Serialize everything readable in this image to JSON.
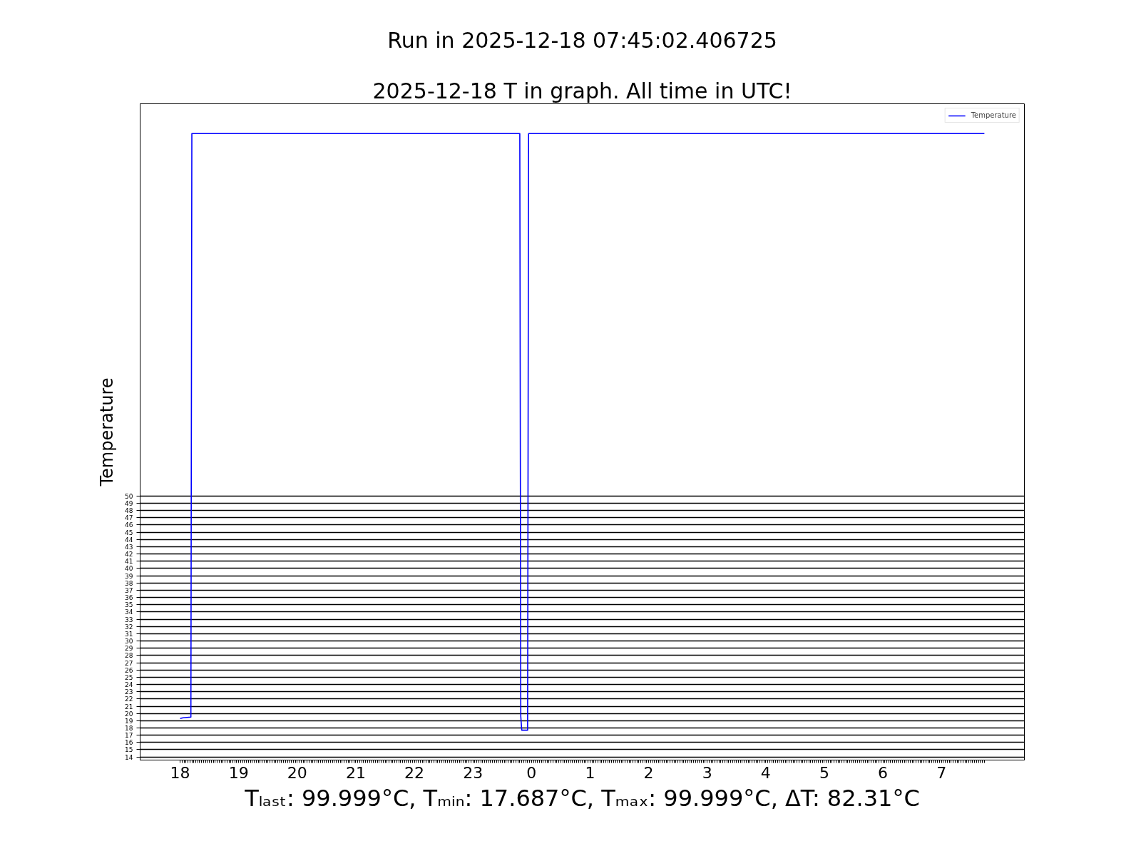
{
  "chart_data": {
    "type": "line",
    "title": "Run in 2025-12-18 07:45:02.406725",
    "subtitle": "2025-12-18 T in graph. All time in UTC!",
    "xlabel": "Tₗₐₛₜ: 99.999°C, Tₘᵢₙ: 17.687°C, Tₘₐₓ: 99.999°C, ΔT: 82.31°C",
    "ylabel": "Temperature",
    "x": [
      "2025-12-17T18:00",
      "2025-12-17T18:03",
      "2025-12-17T18:11",
      "2025-12-17T18:12",
      "2025-12-17T23:48",
      "2025-12-17T23:49",
      "2025-12-17T23:50",
      "2025-12-17T23:56",
      "2025-12-17T23:57",
      "2025-12-18T07:44"
    ],
    "series": [
      {
        "name": "Temperature",
        "color": "#0000ff",
        "values": [
          19.3,
          19.4,
          19.5,
          99.999,
          99.999,
          19.6,
          17.687,
          17.687,
          99.999,
          99.999
        ]
      }
    ],
    "xlim": [
      "2025-12-17T17:19",
      "2025-12-18T08:25"
    ],
    "xticks": [
      {
        "value": "2025-12-17T18:00",
        "label": "18"
      },
      {
        "value": "2025-12-17T18:02",
        "label": null
      },
      {
        "value": "2025-12-17T18:04",
        "label": null
      },
      {
        "value": "2025-12-17T18:06",
        "label": null
      },
      {
        "value": "2025-12-17T18:08",
        "label": null
      },
      {
        "value": "2025-12-17T18:10",
        "label": null
      },
      {
        "value": "2025-12-17T18:12",
        "label": null
      },
      {
        "value": "2025-12-17T18:14",
        "label": null
      },
      {
        "value": "2025-12-17T18:16",
        "label": null
      },
      {
        "value": "2025-12-17T18:18",
        "label": null
      },
      {
        "value": "2025-12-17T18:20",
        "label": null
      },
      {
        "value": "2025-12-17T18:22",
        "label": null
      },
      {
        "value": "2025-12-17T18:24",
        "label": null
      },
      {
        "value": "2025-12-17T18:26",
        "label": null
      },
      {
        "value": "2025-12-17T18:28",
        "label": null
      },
      {
        "value": "2025-12-17T18:30",
        "label": null
      },
      {
        "value": "2025-12-17T18:32",
        "label": null
      },
      {
        "value": "2025-12-17T18:34",
        "label": null
      },
      {
        "value": "2025-12-17T18:36",
        "label": null
      },
      {
        "value": "2025-12-17T18:38",
        "label": null
      },
      {
        "value": "2025-12-17T18:40",
        "label": null
      },
      {
        "value": "2025-12-17T18:42",
        "label": null
      },
      {
        "value": "2025-12-17T18:44",
        "label": null
      },
      {
        "value": "2025-12-17T18:46",
        "label": null
      },
      {
        "value": "2025-12-17T18:48",
        "label": null
      },
      {
        "value": "2025-12-17T18:50",
        "label": null
      },
      {
        "value": "2025-12-17T18:52",
        "label": null
      },
      {
        "value": "2025-12-17T18:54",
        "label": null
      },
      {
        "value": "2025-12-17T18:56",
        "label": null
      },
      {
        "value": "2025-12-17T18:58",
        "label": null
      },
      {
        "value": "2025-12-17T19:00",
        "label": "19"
      },
      {
        "value": "2025-12-17T19:02",
        "label": null
      },
      {
        "value": "2025-12-17T19:04",
        "label": null
      },
      {
        "value": "2025-12-17T19:06",
        "label": null
      },
      {
        "value": "2025-12-17T19:08",
        "label": null
      },
      {
        "value": "2025-12-17T19:10",
        "label": null
      },
      {
        "value": "2025-12-17T19:12",
        "label": null
      },
      {
        "value": "2025-12-17T19:14",
        "label": null
      },
      {
        "value": "2025-12-17T19:16",
        "label": null
      },
      {
        "value": "2025-12-17T19:18",
        "label": null
      },
      {
        "value": "2025-12-17T19:20",
        "label": null
      },
      {
        "value": "2025-12-17T19:22",
        "label": null
      },
      {
        "value": "2025-12-17T19:24",
        "label": null
      },
      {
        "value": "2025-12-17T19:26",
        "label": null
      },
      {
        "value": "2025-12-17T19:28",
        "label": null
      },
      {
        "value": "2025-12-17T19:30",
        "label": null
      },
      {
        "value": "2025-12-17T19:32",
        "label": null
      },
      {
        "value": "2025-12-17T19:34",
        "label": null
      },
      {
        "value": "2025-12-17T19:36",
        "label": null
      },
      {
        "value": "2025-12-17T19:38",
        "label": null
      },
      {
        "value": "2025-12-17T19:40",
        "label": null
      },
      {
        "value": "2025-12-17T19:42",
        "label": null
      },
      {
        "value": "2025-12-17T19:44",
        "label": null
      },
      {
        "value": "2025-12-17T19:46",
        "label": null
      },
      {
        "value": "2025-12-17T19:48",
        "label": null
      },
      {
        "value": "2025-12-17T19:50",
        "label": null
      },
      {
        "value": "2025-12-17T19:52",
        "label": null
      },
      {
        "value": "2025-12-17T19:54",
        "label": null
      },
      {
        "value": "2025-12-17T19:56",
        "label": null
      },
      {
        "value": "2025-12-17T19:58",
        "label": null
      },
      {
        "value": "2025-12-17T20:00",
        "label": "20"
      },
      {
        "value": "2025-12-17T20:02",
        "label": null
      },
      {
        "value": "2025-12-17T20:04",
        "label": null
      },
      {
        "value": "2025-12-17T20:06",
        "label": null
      },
      {
        "value": "2025-12-17T20:08",
        "label": null
      },
      {
        "value": "2025-12-17T20:10",
        "label": null
      },
      {
        "value": "2025-12-17T20:12",
        "label": null
      },
      {
        "value": "2025-12-17T20:14",
        "label": null
      },
      {
        "value": "2025-12-17T20:16",
        "label": null
      },
      {
        "value": "2025-12-17T20:18",
        "label": null
      },
      {
        "value": "2025-12-17T20:20",
        "label": null
      },
      {
        "value": "2025-12-17T20:22",
        "label": null
      },
      {
        "value": "2025-12-17T20:24",
        "label": null
      },
      {
        "value": "2025-12-17T20:26",
        "label": null
      },
      {
        "value": "2025-12-17T20:28",
        "label": null
      },
      {
        "value": "2025-12-17T20:30",
        "label": null
      },
      {
        "value": "2025-12-17T20:32",
        "label": null
      },
      {
        "value": "2025-12-17T20:34",
        "label": null
      },
      {
        "value": "2025-12-17T20:36",
        "label": null
      },
      {
        "value": "2025-12-17T20:38",
        "label": null
      },
      {
        "value": "2025-12-17T20:40",
        "label": null
      },
      {
        "value": "2025-12-17T20:42",
        "label": null
      },
      {
        "value": "2025-12-17T20:44",
        "label": null
      },
      {
        "value": "2025-12-17T20:46",
        "label": null
      },
      {
        "value": "2025-12-17T20:48",
        "label": null
      },
      {
        "value": "2025-12-17T20:50",
        "label": null
      },
      {
        "value": "2025-12-17T20:52",
        "label": null
      },
      {
        "value": "2025-12-17T20:54",
        "label": null
      },
      {
        "value": "2025-12-17T20:56",
        "label": null
      },
      {
        "value": "2025-12-17T20:58",
        "label": null
      },
      {
        "value": "2025-12-17T21:00",
        "label": "21"
      },
      {
        "value": "2025-12-17T21:02",
        "label": null
      },
      {
        "value": "2025-12-17T21:04",
        "label": null
      },
      {
        "value": "2025-12-17T21:06",
        "label": null
      },
      {
        "value": "2025-12-17T21:08",
        "label": null
      },
      {
        "value": "2025-12-17T21:10",
        "label": null
      },
      {
        "value": "2025-12-17T21:12",
        "label": null
      },
      {
        "value": "2025-12-17T21:14",
        "label": null
      },
      {
        "value": "2025-12-17T21:16",
        "label": null
      },
      {
        "value": "2025-12-17T21:18",
        "label": null
      },
      {
        "value": "2025-12-17T21:20",
        "label": null
      },
      {
        "value": "2025-12-17T21:22",
        "label": null
      },
      {
        "value": "2025-12-17T21:24",
        "label": null
      },
      {
        "value": "2025-12-17T21:26",
        "label": null
      },
      {
        "value": "2025-12-17T21:28",
        "label": null
      },
      {
        "value": "2025-12-17T21:30",
        "label": null
      },
      {
        "value": "2025-12-17T21:32",
        "label": null
      },
      {
        "value": "2025-12-17T21:34",
        "label": null
      },
      {
        "value": "2025-12-17T21:36",
        "label": null
      },
      {
        "value": "2025-12-17T21:38",
        "label": null
      },
      {
        "value": "2025-12-17T21:40",
        "label": null
      },
      {
        "value": "2025-12-17T21:42",
        "label": null
      },
      {
        "value": "2025-12-17T21:44",
        "label": null
      },
      {
        "value": "2025-12-17T21:46",
        "label": null
      },
      {
        "value": "2025-12-17T21:48",
        "label": null
      },
      {
        "value": "2025-12-17T21:50",
        "label": null
      },
      {
        "value": "2025-12-17T21:52",
        "label": null
      },
      {
        "value": "2025-12-17T21:54",
        "label": null
      },
      {
        "value": "2025-12-17T21:56",
        "label": null
      },
      {
        "value": "2025-12-17T21:58",
        "label": null
      },
      {
        "value": "2025-12-17T22:00",
        "label": "22"
      },
      {
        "value": "2025-12-17T22:02",
        "label": null
      },
      {
        "value": "2025-12-17T22:04",
        "label": null
      },
      {
        "value": "2025-12-17T22:06",
        "label": null
      },
      {
        "value": "2025-12-17T22:08",
        "label": null
      },
      {
        "value": "2025-12-17T22:10",
        "label": null
      },
      {
        "value": "2025-12-17T22:12",
        "label": null
      },
      {
        "value": "2025-12-17T22:14",
        "label": null
      },
      {
        "value": "2025-12-17T22:16",
        "label": null
      },
      {
        "value": "2025-12-17T22:18",
        "label": null
      },
      {
        "value": "2025-12-17T22:20",
        "label": null
      },
      {
        "value": "2025-12-17T22:22",
        "label": null
      },
      {
        "value": "2025-12-17T22:24",
        "label": null
      },
      {
        "value": "2025-12-17T22:26",
        "label": null
      },
      {
        "value": "2025-12-17T22:28",
        "label": null
      },
      {
        "value": "2025-12-17T22:30",
        "label": null
      },
      {
        "value": "2025-12-17T22:32",
        "label": null
      },
      {
        "value": "2025-12-17T22:34",
        "label": null
      },
      {
        "value": "2025-12-17T22:36",
        "label": null
      },
      {
        "value": "2025-12-17T22:38",
        "label": null
      },
      {
        "value": "2025-12-17T22:40",
        "label": null
      },
      {
        "value": "2025-12-17T22:42",
        "label": null
      },
      {
        "value": "2025-12-17T22:44",
        "label": null
      },
      {
        "value": "2025-12-17T22:46",
        "label": null
      },
      {
        "value": "2025-12-17T22:48",
        "label": null
      },
      {
        "value": "2025-12-17T22:50",
        "label": null
      },
      {
        "value": "2025-12-17T22:52",
        "label": null
      },
      {
        "value": "2025-12-17T22:54",
        "label": null
      },
      {
        "value": "2025-12-17T22:56",
        "label": null
      },
      {
        "value": "2025-12-17T22:58",
        "label": null
      },
      {
        "value": "2025-12-17T23:00",
        "label": "23"
      },
      {
        "value": "2025-12-17T23:02",
        "label": null
      },
      {
        "value": "2025-12-17T23:04",
        "label": null
      },
      {
        "value": "2025-12-17T23:06",
        "label": null
      },
      {
        "value": "2025-12-17T23:08",
        "label": null
      },
      {
        "value": "2025-12-17T23:10",
        "label": null
      },
      {
        "value": "2025-12-17T23:12",
        "label": null
      },
      {
        "value": "2025-12-17T23:14",
        "label": null
      },
      {
        "value": "2025-12-17T23:16",
        "label": null
      },
      {
        "value": "2025-12-17T23:18",
        "label": null
      },
      {
        "value": "2025-12-17T23:20",
        "label": null
      },
      {
        "value": "2025-12-17T23:22",
        "label": null
      },
      {
        "value": "2025-12-17T23:24",
        "label": null
      },
      {
        "value": "2025-12-17T23:26",
        "label": null
      },
      {
        "value": "2025-12-17T23:28",
        "label": null
      },
      {
        "value": "2025-12-17T23:30",
        "label": null
      },
      {
        "value": "2025-12-17T23:32",
        "label": null
      },
      {
        "value": "2025-12-17T23:34",
        "label": null
      },
      {
        "value": "2025-12-17T23:36",
        "label": null
      },
      {
        "value": "2025-12-17T23:38",
        "label": null
      },
      {
        "value": "2025-12-17T23:40",
        "label": null
      },
      {
        "value": "2025-12-17T23:42",
        "label": null
      },
      {
        "value": "2025-12-17T23:44",
        "label": null
      },
      {
        "value": "2025-12-17T23:46",
        "label": null
      },
      {
        "value": "2025-12-17T23:48",
        "label": null
      },
      {
        "value": "2025-12-17T23:50",
        "label": null
      },
      {
        "value": "2025-12-17T23:52",
        "label": null
      },
      {
        "value": "2025-12-17T23:54",
        "label": null
      },
      {
        "value": "2025-12-17T23:56",
        "label": null
      },
      {
        "value": "2025-12-17T23:58",
        "label": null
      },
      {
        "value": "2025-12-18T00:00",
        "label": "0"
      },
      {
        "value": "2025-12-18T00:02",
        "label": null
      },
      {
        "value": "2025-12-18T00:04",
        "label": null
      },
      {
        "value": "2025-12-18T00:06",
        "label": null
      },
      {
        "value": "2025-12-18T00:08",
        "label": null
      },
      {
        "value": "2025-12-18T00:10",
        "label": null
      },
      {
        "value": "2025-12-18T00:12",
        "label": null
      },
      {
        "value": "2025-12-18T00:14",
        "label": null
      },
      {
        "value": "2025-12-18T00:16",
        "label": null
      },
      {
        "value": "2025-12-18T00:18",
        "label": null
      },
      {
        "value": "2025-12-18T00:20",
        "label": null
      },
      {
        "value": "2025-12-18T00:22",
        "label": null
      },
      {
        "value": "2025-12-18T00:24",
        "label": null
      },
      {
        "value": "2025-12-18T00:26",
        "label": null
      },
      {
        "value": "2025-12-18T00:28",
        "label": null
      },
      {
        "value": "2025-12-18T00:30",
        "label": null
      },
      {
        "value": "2025-12-18T00:32",
        "label": null
      },
      {
        "value": "2025-12-18T00:34",
        "label": null
      },
      {
        "value": "2025-12-18T00:36",
        "label": null
      },
      {
        "value": "2025-12-18T00:38",
        "label": null
      },
      {
        "value": "2025-12-18T00:40",
        "label": null
      },
      {
        "value": "2025-12-18T00:42",
        "label": null
      },
      {
        "value": "2025-12-18T00:44",
        "label": null
      },
      {
        "value": "2025-12-18T00:46",
        "label": null
      },
      {
        "value": "2025-12-18T00:48",
        "label": null
      },
      {
        "value": "2025-12-18T00:50",
        "label": null
      },
      {
        "value": "2025-12-18T00:52",
        "label": null
      },
      {
        "value": "2025-12-18T00:54",
        "label": null
      },
      {
        "value": "2025-12-18T00:56",
        "label": null
      },
      {
        "value": "2025-12-18T00:58",
        "label": null
      },
      {
        "value": "2025-12-18T01:00",
        "label": "1"
      },
      {
        "value": "2025-12-18T01:02",
        "label": null
      },
      {
        "value": "2025-12-18T01:04",
        "label": null
      },
      {
        "value": "2025-12-18T01:06",
        "label": null
      },
      {
        "value": "2025-12-18T01:08",
        "label": null
      },
      {
        "value": "2025-12-18T01:10",
        "label": null
      },
      {
        "value": "2025-12-18T01:12",
        "label": null
      },
      {
        "value": "2025-12-18T01:14",
        "label": null
      },
      {
        "value": "2025-12-18T01:16",
        "label": null
      },
      {
        "value": "2025-12-18T01:18",
        "label": null
      },
      {
        "value": "2025-12-18T01:20",
        "label": null
      },
      {
        "value": "2025-12-18T01:22",
        "label": null
      },
      {
        "value": "2025-12-18T01:24",
        "label": null
      },
      {
        "value": "2025-12-18T01:26",
        "label": null
      },
      {
        "value": "2025-12-18T01:28",
        "label": null
      },
      {
        "value": "2025-12-18T01:30",
        "label": null
      },
      {
        "value": "2025-12-18T01:32",
        "label": null
      },
      {
        "value": "2025-12-18T01:34",
        "label": null
      },
      {
        "value": "2025-12-18T01:36",
        "label": null
      },
      {
        "value": "2025-12-18T01:38",
        "label": null
      },
      {
        "value": "2025-12-18T01:40",
        "label": null
      },
      {
        "value": "2025-12-18T01:42",
        "label": null
      },
      {
        "value": "2025-12-18T01:44",
        "label": null
      },
      {
        "value": "2025-12-18T01:46",
        "label": null
      },
      {
        "value": "2025-12-18T01:48",
        "label": null
      },
      {
        "value": "2025-12-18T01:50",
        "label": null
      },
      {
        "value": "2025-12-18T01:52",
        "label": null
      },
      {
        "value": "2025-12-18T01:54",
        "label": null
      },
      {
        "value": "2025-12-18T01:56",
        "label": null
      },
      {
        "value": "2025-12-18T01:58",
        "label": null
      },
      {
        "value": "2025-12-18T02:00",
        "label": "2"
      },
      {
        "value": "2025-12-18T02:02",
        "label": null
      },
      {
        "value": "2025-12-18T02:04",
        "label": null
      },
      {
        "value": "2025-12-18T02:06",
        "label": null
      },
      {
        "value": "2025-12-18T02:08",
        "label": null
      },
      {
        "value": "2025-12-18T02:10",
        "label": null
      },
      {
        "value": "2025-12-18T02:12",
        "label": null
      },
      {
        "value": "2025-12-18T02:14",
        "label": null
      },
      {
        "value": "2025-12-18T02:16",
        "label": null
      },
      {
        "value": "2025-12-18T02:18",
        "label": null
      },
      {
        "value": "2025-12-18T02:20",
        "label": null
      },
      {
        "value": "2025-12-18T02:22",
        "label": null
      },
      {
        "value": "2025-12-18T02:24",
        "label": null
      },
      {
        "value": "2025-12-18T02:26",
        "label": null
      },
      {
        "value": "2025-12-18T02:28",
        "label": null
      },
      {
        "value": "2025-12-18T02:30",
        "label": null
      },
      {
        "value": "2025-12-18T02:32",
        "label": null
      },
      {
        "value": "2025-12-18T02:34",
        "label": null
      },
      {
        "value": "2025-12-18T02:36",
        "label": null
      },
      {
        "value": "2025-12-18T02:38",
        "label": null
      },
      {
        "value": "2025-12-18T02:40",
        "label": null
      },
      {
        "value": "2025-12-18T02:42",
        "label": null
      },
      {
        "value": "2025-12-18T02:44",
        "label": null
      },
      {
        "value": "2025-12-18T02:46",
        "label": null
      },
      {
        "value": "2025-12-18T02:48",
        "label": null
      },
      {
        "value": "2025-12-18T02:50",
        "label": null
      },
      {
        "value": "2025-12-18T02:52",
        "label": null
      },
      {
        "value": "2025-12-18T02:54",
        "label": null
      },
      {
        "value": "2025-12-18T02:56",
        "label": null
      },
      {
        "value": "2025-12-18T02:58",
        "label": null
      },
      {
        "value": "2025-12-18T03:00",
        "label": "3"
      },
      {
        "value": "2025-12-18T03:02",
        "label": null
      },
      {
        "value": "2025-12-18T03:04",
        "label": null
      },
      {
        "value": "2025-12-18T03:06",
        "label": null
      },
      {
        "value": "2025-12-18T03:08",
        "label": null
      },
      {
        "value": "2025-12-18T03:10",
        "label": null
      },
      {
        "value": "2025-12-18T03:12",
        "label": null
      },
      {
        "value": "2025-12-18T03:14",
        "label": null
      },
      {
        "value": "2025-12-18T03:16",
        "label": null
      },
      {
        "value": "2025-12-18T03:18",
        "label": null
      },
      {
        "value": "2025-12-18T03:20",
        "label": null
      },
      {
        "value": "2025-12-18T03:22",
        "label": null
      },
      {
        "value": "2025-12-18T03:24",
        "label": null
      },
      {
        "value": "2025-12-18T03:26",
        "label": null
      },
      {
        "value": "2025-12-18T03:28",
        "label": null
      },
      {
        "value": "2025-12-18T03:30",
        "label": null
      },
      {
        "value": "2025-12-18T03:32",
        "label": null
      },
      {
        "value": "2025-12-18T03:34",
        "label": null
      },
      {
        "value": "2025-12-18T03:36",
        "label": null
      },
      {
        "value": "2025-12-18T03:38",
        "label": null
      },
      {
        "value": "2025-12-18T03:40",
        "label": null
      },
      {
        "value": "2025-12-18T03:42",
        "label": null
      },
      {
        "value": "2025-12-18T03:44",
        "label": null
      },
      {
        "value": "2025-12-18T03:46",
        "label": null
      },
      {
        "value": "2025-12-18T03:48",
        "label": null
      },
      {
        "value": "2025-12-18T03:50",
        "label": null
      },
      {
        "value": "2025-12-18T03:52",
        "label": null
      },
      {
        "value": "2025-12-18T03:54",
        "label": null
      },
      {
        "value": "2025-12-18T03:56",
        "label": null
      },
      {
        "value": "2025-12-18T03:58",
        "label": null
      },
      {
        "value": "2025-12-18T04:00",
        "label": "4"
      },
      {
        "value": "2025-12-18T04:02",
        "label": null
      },
      {
        "value": "2025-12-18T04:04",
        "label": null
      },
      {
        "value": "2025-12-18T04:06",
        "label": null
      },
      {
        "value": "2025-12-18T04:08",
        "label": null
      },
      {
        "value": "2025-12-18T04:10",
        "label": null
      },
      {
        "value": "2025-12-18T04:12",
        "label": null
      },
      {
        "value": "2025-12-18T04:14",
        "label": null
      },
      {
        "value": "2025-12-18T04:16",
        "label": null
      },
      {
        "value": "2025-12-18T04:18",
        "label": null
      },
      {
        "value": "2025-12-18T04:20",
        "label": null
      },
      {
        "value": "2025-12-18T04:22",
        "label": null
      },
      {
        "value": "2025-12-18T04:24",
        "label": null
      },
      {
        "value": "2025-12-18T04:26",
        "label": null
      },
      {
        "value": "2025-12-18T04:28",
        "label": null
      },
      {
        "value": "2025-12-18T04:30",
        "label": null
      },
      {
        "value": "2025-12-18T04:32",
        "label": null
      },
      {
        "value": "2025-12-18T04:34",
        "label": null
      },
      {
        "value": "2025-12-18T04:36",
        "label": null
      },
      {
        "value": "2025-12-18T04:38",
        "label": null
      },
      {
        "value": "2025-12-18T04:40",
        "label": null
      },
      {
        "value": "2025-12-18T04:42",
        "label": null
      },
      {
        "value": "2025-12-18T04:44",
        "label": null
      },
      {
        "value": "2025-12-18T04:46",
        "label": null
      },
      {
        "value": "2025-12-18T04:48",
        "label": null
      },
      {
        "value": "2025-12-18T04:50",
        "label": null
      },
      {
        "value": "2025-12-18T04:52",
        "label": null
      },
      {
        "value": "2025-12-18T04:54",
        "label": null
      },
      {
        "value": "2025-12-18T04:56",
        "label": null
      },
      {
        "value": "2025-12-18T04:58",
        "label": null
      },
      {
        "value": "2025-12-18T05:00",
        "label": "5"
      },
      {
        "value": "2025-12-18T05:02",
        "label": null
      },
      {
        "value": "2025-12-18T05:04",
        "label": null
      },
      {
        "value": "2025-12-18T05:06",
        "label": null
      },
      {
        "value": "2025-12-18T05:08",
        "label": null
      },
      {
        "value": "2025-12-18T05:10",
        "label": null
      },
      {
        "value": "2025-12-18T05:12",
        "label": null
      },
      {
        "value": "2025-12-18T05:14",
        "label": null
      },
      {
        "value": "2025-12-18T05:16",
        "label": null
      },
      {
        "value": "2025-12-18T05:18",
        "label": null
      },
      {
        "value": "2025-12-18T05:20",
        "label": null
      },
      {
        "value": "2025-12-18T05:22",
        "label": null
      },
      {
        "value": "2025-12-18T05:24",
        "label": null
      },
      {
        "value": "2025-12-18T05:26",
        "label": null
      },
      {
        "value": "2025-12-18T05:28",
        "label": null
      },
      {
        "value": "2025-12-18T05:30",
        "label": null
      },
      {
        "value": "2025-12-18T05:32",
        "label": null
      },
      {
        "value": "2025-12-18T05:34",
        "label": null
      },
      {
        "value": "2025-12-18T05:36",
        "label": null
      },
      {
        "value": "2025-12-18T05:38",
        "label": null
      },
      {
        "value": "2025-12-18T05:40",
        "label": null
      },
      {
        "value": "2025-12-18T05:42",
        "label": null
      },
      {
        "value": "2025-12-18T05:44",
        "label": null
      },
      {
        "value": "2025-12-18T05:46",
        "label": null
      },
      {
        "value": "2025-12-18T05:48",
        "label": null
      },
      {
        "value": "2025-12-18T05:50",
        "label": null
      },
      {
        "value": "2025-12-18T05:52",
        "label": null
      },
      {
        "value": "2025-12-18T05:54",
        "label": null
      },
      {
        "value": "2025-12-18T05:56",
        "label": null
      },
      {
        "value": "2025-12-18T05:58",
        "label": null
      },
      {
        "value": "2025-12-18T06:00",
        "label": "6"
      },
      {
        "value": "2025-12-18T06:02",
        "label": null
      },
      {
        "value": "2025-12-18T06:04",
        "label": null
      },
      {
        "value": "2025-12-18T06:06",
        "label": null
      },
      {
        "value": "2025-12-18T06:08",
        "label": null
      },
      {
        "value": "2025-12-18T06:10",
        "label": null
      },
      {
        "value": "2025-12-18T06:12",
        "label": null
      },
      {
        "value": "2025-12-18T06:14",
        "label": null
      },
      {
        "value": "2025-12-18T06:16",
        "label": null
      },
      {
        "value": "2025-12-18T06:18",
        "label": null
      },
      {
        "value": "2025-12-18T06:20",
        "label": null
      },
      {
        "value": "2025-12-18T06:22",
        "label": null
      },
      {
        "value": "2025-12-18T06:24",
        "label": null
      },
      {
        "value": "2025-12-18T06:26",
        "label": null
      },
      {
        "value": "2025-12-18T06:28",
        "label": null
      },
      {
        "value": "2025-12-18T06:30",
        "label": null
      },
      {
        "value": "2025-12-18T06:32",
        "label": null
      },
      {
        "value": "2025-12-18T06:34",
        "label": null
      },
      {
        "value": "2025-12-18T06:36",
        "label": null
      },
      {
        "value": "2025-12-18T06:38",
        "label": null
      },
      {
        "value": "2025-12-18T06:40",
        "label": null
      },
      {
        "value": "2025-12-18T06:42",
        "label": null
      },
      {
        "value": "2025-12-18T06:44",
        "label": null
      },
      {
        "value": "2025-12-18T06:46",
        "label": null
      },
      {
        "value": "2025-12-18T06:48",
        "label": null
      },
      {
        "value": "2025-12-18T06:50",
        "label": null
      },
      {
        "value": "2025-12-18T06:52",
        "label": null
      },
      {
        "value": "2025-12-18T06:54",
        "label": null
      },
      {
        "value": "2025-12-18T06:56",
        "label": null
      },
      {
        "value": "2025-12-18T06:58",
        "label": null
      },
      {
        "value": "2025-12-18T07:00",
        "label": "7"
      },
      {
        "value": "2025-12-18T07:02",
        "label": null
      },
      {
        "value": "2025-12-18T07:04",
        "label": null
      },
      {
        "value": "2025-12-18T07:06",
        "label": null
      },
      {
        "value": "2025-12-18T07:08",
        "label": null
      },
      {
        "value": "2025-12-18T07:10",
        "label": null
      },
      {
        "value": "2025-12-18T07:12",
        "label": null
      },
      {
        "value": "2025-12-18T07:14",
        "label": null
      },
      {
        "value": "2025-12-18T07:16",
        "label": null
      },
      {
        "value": "2025-12-18T07:18",
        "label": null
      },
      {
        "value": "2025-12-18T07:20",
        "label": null
      },
      {
        "value": "2025-12-18T07:22",
        "label": null
      },
      {
        "value": "2025-12-18T07:24",
        "label": null
      },
      {
        "value": "2025-12-18T07:26",
        "label": null
      },
      {
        "value": "2025-12-18T07:28",
        "label": null
      },
      {
        "value": "2025-12-18T07:30",
        "label": null
      },
      {
        "value": "2025-12-18T07:32",
        "label": null
      },
      {
        "value": "2025-12-18T07:34",
        "label": null
      },
      {
        "value": "2025-12-18T07:36",
        "label": null
      },
      {
        "value": "2025-12-18T07:38",
        "label": null
      },
      {
        "value": "2025-12-18T07:40",
        "label": null
      },
      {
        "value": "2025-12-18T07:42",
        "label": null
      },
      {
        "value": "2025-12-18T07:44",
        "label": null
      }
    ],
    "ylim": [
      13.57,
      104.11
    ],
    "yticks": [
      14,
      15,
      16,
      17,
      18,
      19,
      20,
      21,
      22,
      23,
      24,
      25,
      26,
      27,
      28,
      29,
      30,
      31,
      32,
      33,
      34,
      35,
      36,
      37,
      38,
      39,
      40,
      41,
      42,
      43,
      44,
      45,
      46,
      47,
      48,
      49,
      50
    ],
    "grid": "y",
    "legend": "top right"
  }
}
